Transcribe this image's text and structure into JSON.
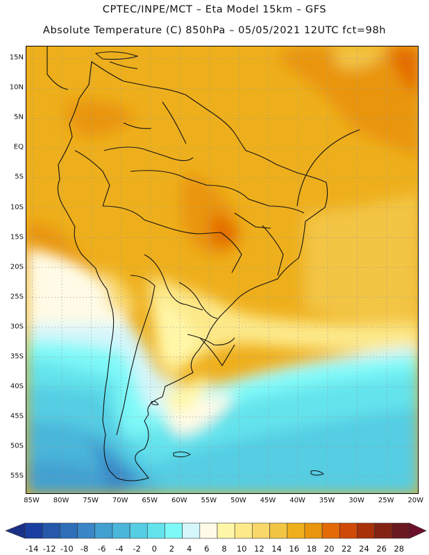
{
  "header": {
    "line1": "CPTEC/INPE/MCT –  Eta Model 15km – GFS",
    "line2": "Absolute Temperature (C) 850hPa – 05/05/2021 12UTC fct=98h"
  },
  "map": {
    "region": "South America",
    "lat_labels": [
      "15N",
      "10N",
      "5N",
      "EQ",
      "5S",
      "10S",
      "15S",
      "20S",
      "25S",
      "30S",
      "35S",
      "40S",
      "45S",
      "50S",
      "55S"
    ],
    "lat_values": [
      15,
      10,
      5,
      0,
      -5,
      -10,
      -15,
      -20,
      -25,
      -30,
      -35,
      -40,
      -45,
      -50,
      -55
    ],
    "lon_labels": [
      "85W",
      "80W",
      "75W",
      "70W",
      "65W",
      "60W",
      "55W",
      "50W",
      "45W",
      "40W",
      "35W",
      "30W",
      "25W",
      "20W"
    ],
    "lon_values": [
      -85,
      -80,
      -75,
      -70,
      -65,
      -60,
      -55,
      -50,
      -45,
      -40,
      -35,
      -30,
      -25,
      -20
    ],
    "lon_range": [
      -86,
      -19.5
    ],
    "lat_range": [
      17,
      -58
    ]
  },
  "legend": {
    "labels": [
      "-14",
      "-12",
      "-10",
      "-8",
      "-6",
      "-4",
      "-2",
      "0",
      "2",
      "4",
      "6",
      "8",
      "10",
      "12",
      "14",
      "16",
      "18",
      "20",
      "22",
      "24",
      "26",
      "28"
    ],
    "colors": [
      "#1a3fa0",
      "#2558ab",
      "#2e6fb8",
      "#3a86c6",
      "#42a0d1",
      "#49b6da",
      "#55cde3",
      "#63e3ec",
      "#7ff9f8",
      "#d5f6fb",
      "#fffbe6",
      "#fff7a8",
      "#fde98a",
      "#f8d86a",
      "#f3c544",
      "#eeaf1c",
      "#e9950d",
      "#e36a05",
      "#d04a07",
      "#a9310a",
      "#842314",
      "#6b1920"
    ],
    "min": -14,
    "max": 28,
    "step": 2
  }
}
